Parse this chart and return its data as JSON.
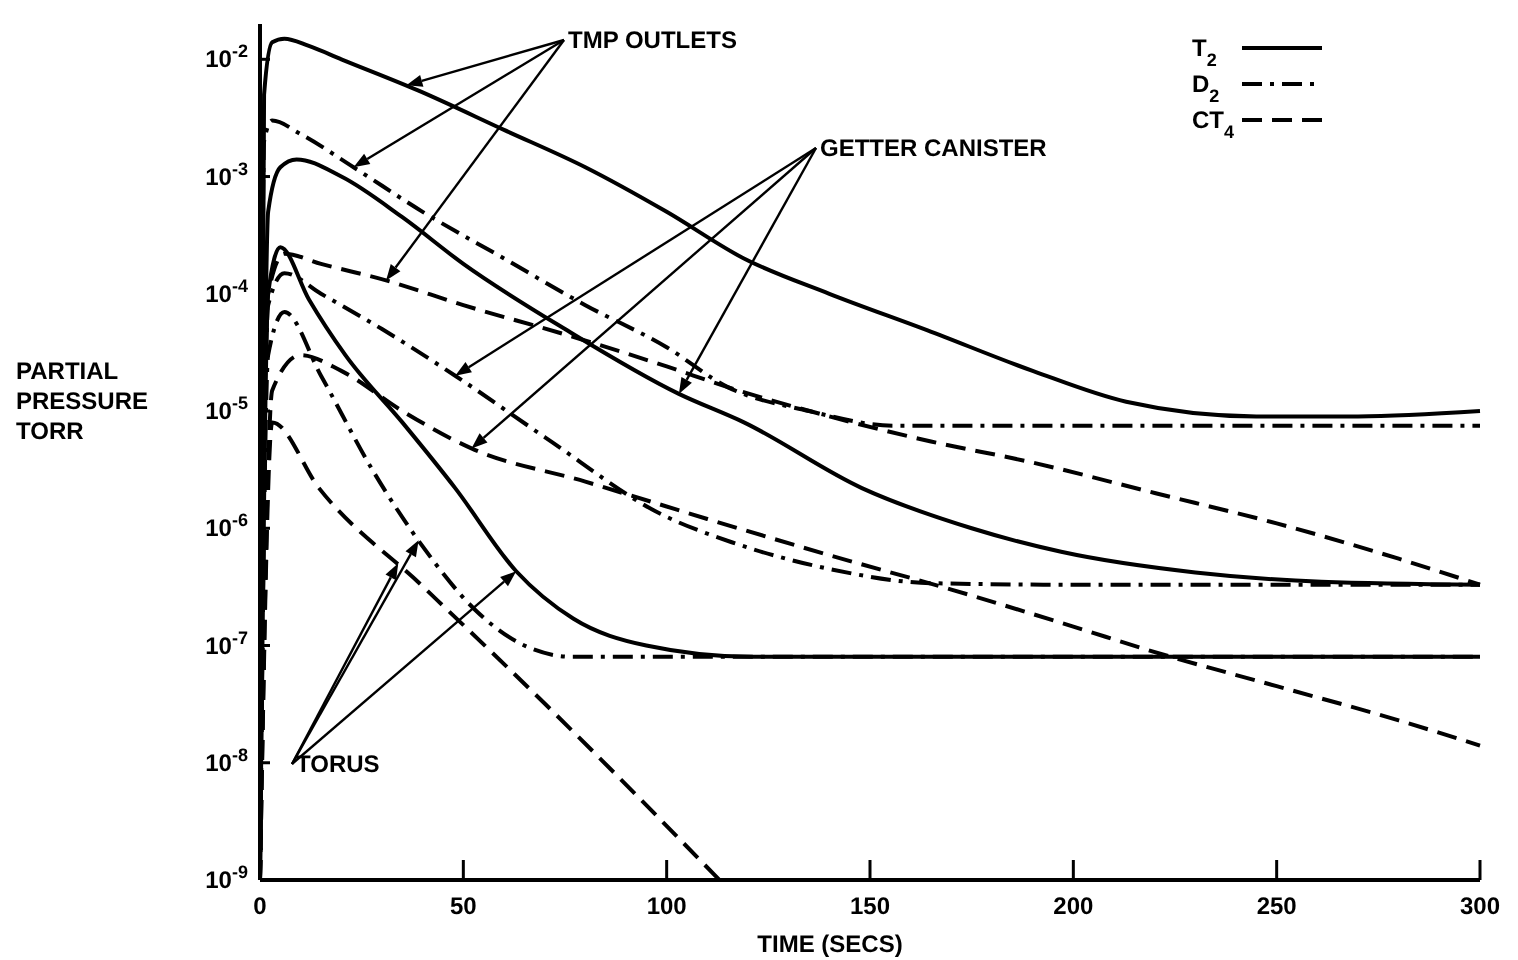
{
  "chart_data": {
    "type": "line",
    "xlabel": "TIME (SECS)",
    "ylabel": "PARTIAL PRESSURE TORR",
    "log": "y",
    "xlim": [
      0,
      300
    ],
    "xticks": [
      0,
      50,
      100,
      150,
      200,
      250,
      300
    ],
    "ylim": [
      1e-09,
      0.02
    ],
    "yticks": [
      {
        "value": 1e-09,
        "label": "10$^{-9}$"
      },
      {
        "value": 1e-08,
        "label": "10$^{-8}$"
      },
      {
        "value": 1e-07,
        "label": "10$^{-7}$"
      },
      {
        "value": 1e-06,
        "label": "10$^{-6}$"
      },
      {
        "value": 1e-05,
        "label": "10$^{-5}$"
      },
      {
        "value": 0.0001,
        "label": "10$^{-4}$"
      },
      {
        "value": 0.001,
        "label": "10$^{-3}$"
      },
      {
        "value": 0.01,
        "label": "10$^{-2}$"
      }
    ],
    "grid": false,
    "legend": "top right",
    "annotations": [
      {
        "text": "TMP OUTLETS",
        "x": 36,
        "y": 0.006
      },
      {
        "text": "GETTER CANISTER",
        "x": 48,
        "y": 2e-05
      },
      "TORUS"
    ],
    "series": [
      {
        "name": "T$_{2}$",
        "color": "#000000",
        "line_style": "solid",
        "x": [
          0,
          1,
          3,
          6,
          12,
          20,
          39,
          60,
          80,
          100,
          119,
          140,
          164,
          190,
          213,
          245,
          270,
          300
        ],
        "values": [
          1e-09,
          0.005,
          0.014,
          0.015,
          0.013,
          0.01,
          0.0054,
          0.0025,
          0.0012,
          0.0005,
          0.0002,
          0.0001,
          4.9e-05,
          2.2e-05,
          1.2e-05,
          9e-06,
          9e-06,
          1e-05
        ]
      },
      {
        "name": "D$_{2}$",
        "color": "#000000",
        "line_style": "dashdot",
        "x": [
          0,
          1,
          3,
          10,
          23,
          40,
          60,
          80,
          100,
          115,
          135,
          156,
          200,
          250,
          300
        ],
        "values": [
          1e-09,
          0.002,
          0.003,
          0.0023,
          0.0012,
          0.0005,
          0.0002,
          8e-05,
          3.5e-05,
          1.6e-05,
          1e-05,
          7.5e-06,
          7.5e-06,
          7.5e-06,
          7.5e-06
        ]
      },
      {
        "name": "CT$_{4}$",
        "color": "#000000",
        "line_style": "dashed",
        "x": [
          0,
          2,
          6,
          15,
          31,
          50,
          75,
          100,
          115,
          140,
          165,
          189,
          220,
          250,
          280,
          300
        ],
        "values": [
          1e-09,
          0.0001,
          0.00022,
          0.00018,
          0.00013,
          8e-05,
          4.5e-05,
          2.4e-05,
          1.6e-05,
          9e-06,
          5.5e-06,
          3.7e-06,
          2e-06,
          1.1e-06,
          5.5e-07,
          3.3e-07
        ]
      },
      {
        "color": "#000000",
        "line_style": "solid",
        "x": [
          0,
          2,
          5,
          9,
          20,
          35,
          50,
          75,
          103,
          119,
          148,
          175,
          197,
          230,
          261,
          300
        ],
        "values": [
          1e-09,
          0.0005,
          0.0012,
          0.0014,
          0.001,
          0.00045,
          0.00018,
          5e-05,
          1.4e-05,
          8e-06,
          2.2e-06,
          1e-06,
          6.3e-07,
          4.2e-07,
          3.5e-07,
          3.3e-07
        ]
      },
      {
        "color": "#000000",
        "line_style": "dashdot",
        "x": [
          0,
          2,
          6,
          15,
          30,
          48,
          70,
          99,
          116,
          140,
          165,
          200,
          250,
          300
        ],
        "values": [
          1e-09,
          8e-05,
          0.00015,
          0.0001,
          5e-05,
          2e-05,
          6e-06,
          1.3e-06,
          7.6e-07,
          4.5e-07,
          3.4e-07,
          3.3e-07,
          3.3e-07,
          3.3e-07
        ]
      },
      {
        "color": "#000000",
        "line_style": "dashed",
        "x": [
          0,
          3,
          10,
          20,
          35,
          52,
          80,
          110,
          140,
          170,
          200,
          219,
          250,
          280,
          300
        ],
        "values": [
          1e-09,
          1.5e-05,
          3e-05,
          2.2e-05,
          1e-05,
          4.8e-06,
          2.5e-06,
          1.2e-06,
          5.9e-07,
          3e-07,
          1.45e-07,
          9e-08,
          4.5e-08,
          2.3e-08,
          1.4e-08
        ]
      },
      {
        "color": "#000000",
        "line_style": "solid",
        "x": [
          0,
          2,
          5,
          12,
          21,
          35,
          48,
          63,
          77,
          95,
          121,
          150,
          200,
          250,
          300
        ],
        "values": [
          1e-09,
          0.0001,
          0.00025,
          9e-05,
          3e-05,
          8e-06,
          2.2e-06,
          4.3e-07,
          1.7e-07,
          1e-07,
          8e-08,
          8e-08,
          8e-08,
          8e-08,
          8e-08
        ]
      },
      {
        "color": "#000000",
        "line_style": "dashdot",
        "x": [
          0,
          2,
          6,
          15,
          28,
          40,
          53,
          65,
          77,
          100,
          150,
          200,
          250,
          300
        ],
        "values": [
          1e-09,
          3e-05,
          7e-05,
          2e-05,
          3e-06,
          7e-07,
          2e-07,
          1e-07,
          8e-08,
          8e-08,
          8e-08,
          8e-08,
          8e-08,
          8e-08
        ]
      },
      {
        "color": "#000000",
        "line_style": "dashed",
        "x": [
          0,
          3,
          14.5,
          40,
          70,
          113
        ],
        "values": [
          1e-09,
          8e-06,
          2.2e-06,
          3.2e-07,
          3.2e-08,
          1e-09
        ]
      }
    ]
  }
}
